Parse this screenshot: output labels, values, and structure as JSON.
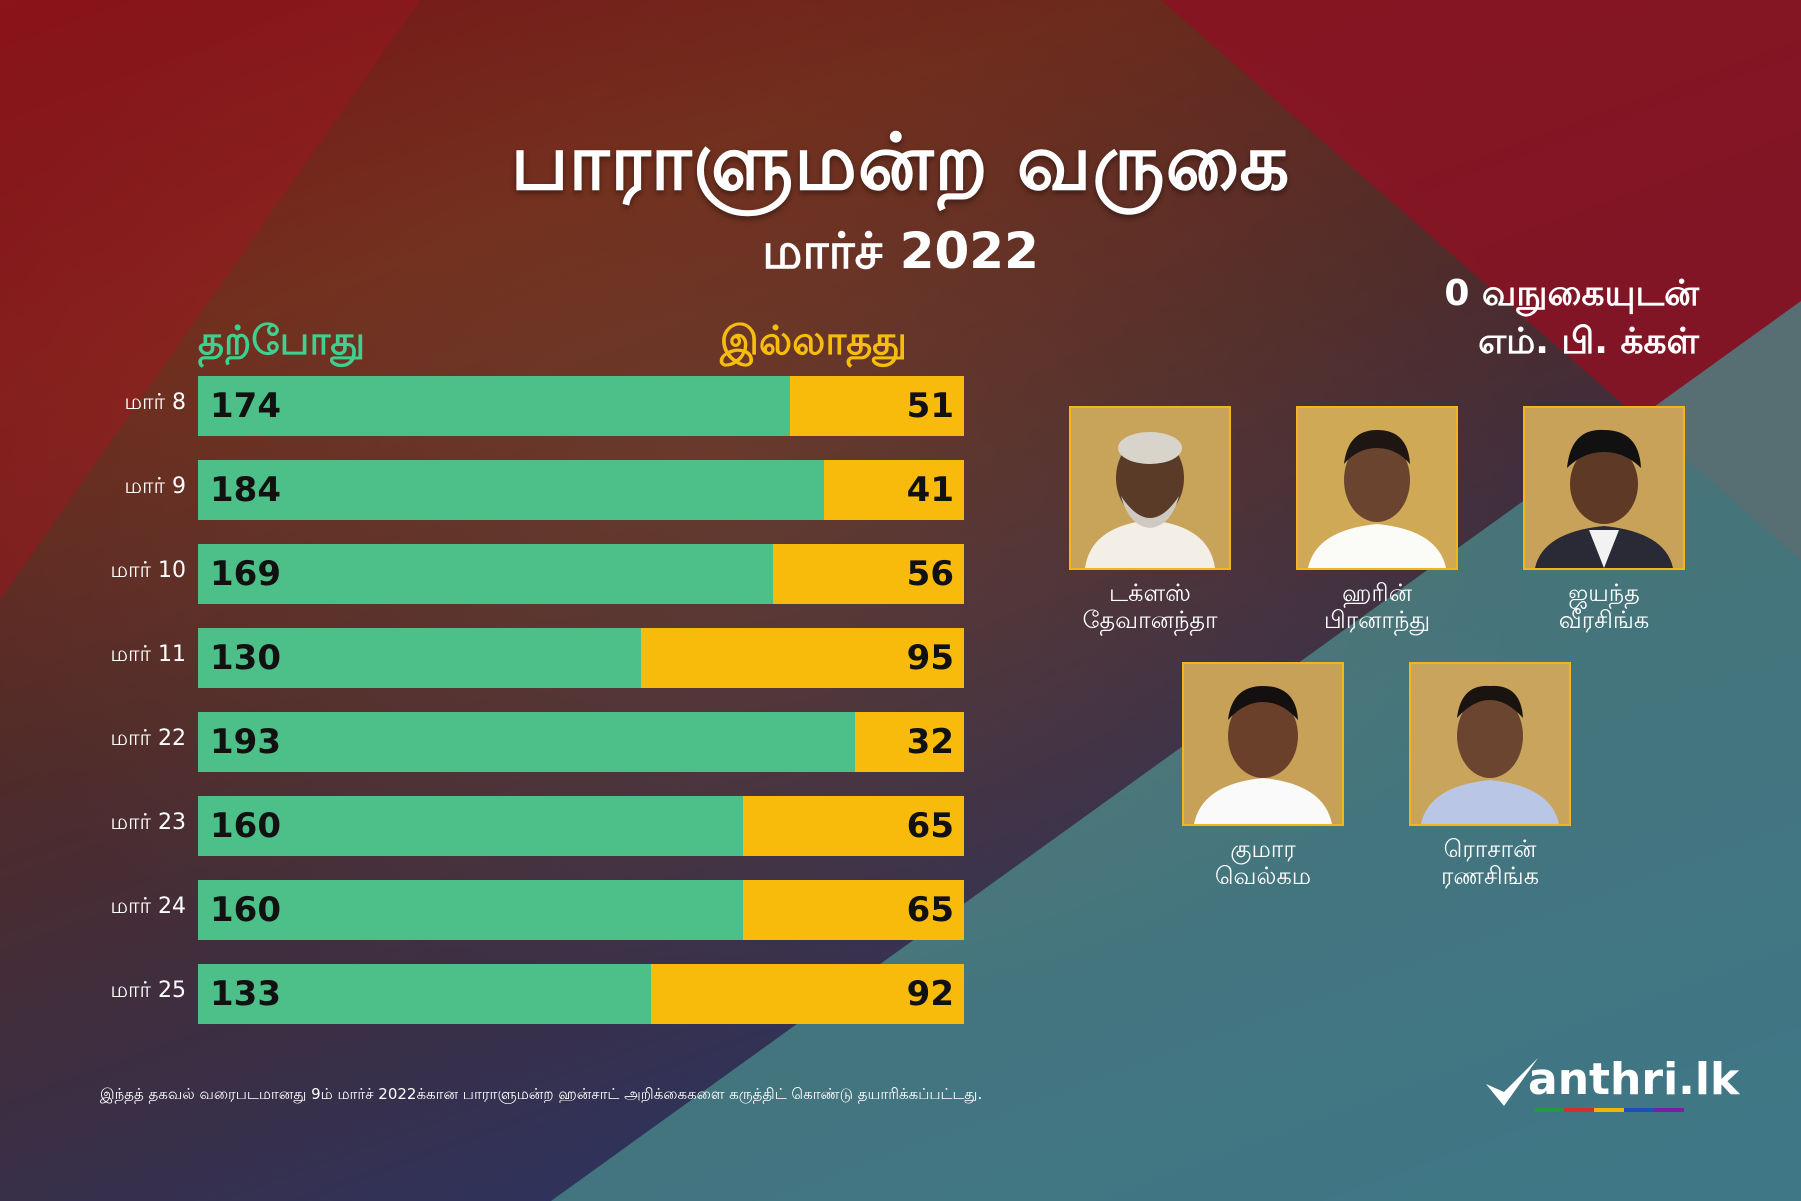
{
  "title": "பாராளுமன்ற வருகை",
  "subtitle": "மார்ச் 2022",
  "legend": {
    "present": "தற்போது",
    "absent": "இல்லாதது"
  },
  "right_heading": {
    "line1": "0 வநுகையுடன்",
    "line2": "எம். பி. க்கள்"
  },
  "chart_data": {
    "type": "bar",
    "orientation": "horizontal-stacked",
    "total": 225,
    "categories": [
      "மார் 8",
      "மார் 9",
      "மார் 10",
      "மார் 11",
      "மார் 22",
      "மார் 23",
      "மார் 24",
      "மார் 25"
    ],
    "series": [
      {
        "name": "தற்போது",
        "color": "#4cc088",
        "values": [
          174,
          184,
          169,
          130,
          193,
          160,
          160,
          133
        ]
      },
      {
        "name": "இல்லாதது",
        "color": "#f9bb0b",
        "values": [
          51,
          41,
          56,
          95,
          32,
          65,
          65,
          92
        ]
      }
    ]
  },
  "mps": [
    {
      "line1": "டக்ளஸ்",
      "line2": "தேவானந்தா"
    },
    {
      "line1": "ஹரின்",
      "line2": "பிரனாந்து"
    },
    {
      "line1": "ஜயந்த",
      "line2": "வீரசிங்க"
    },
    {
      "line1": "குமார",
      "line2": "வெல்கம"
    },
    {
      "line1": "ரொசான்",
      "line2": "ரணசிங்க"
    }
  ],
  "footnote": "இந்தத் தகவல் வரைபடமானது 9ம் மார்ச் 2022க்கான பாராளுமன்ற ஹன்சாட் அறிக்கைகளை கருத்திட் கொண்டு தயாரிக்கப்பட்டது.",
  "logo": {
    "text": "anthri.lk",
    "underline_colors": [
      "#1f9a4b",
      "#d32f2f",
      "#f4b400",
      "#1e4fb8",
      "#7b1fa2"
    ]
  },
  "colors": {
    "present": "#4cc088",
    "absent": "#f9bb0b",
    "photo_border": "#f2b61b"
  }
}
